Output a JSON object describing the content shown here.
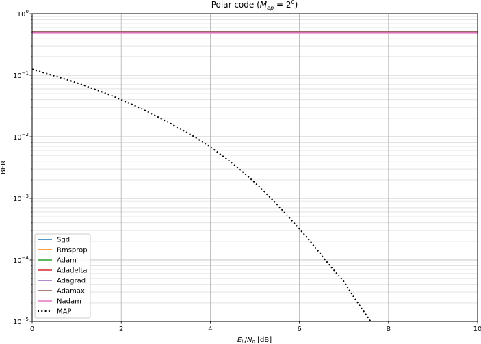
{
  "chart_data": {
    "type": "line",
    "title": "Polar code (M_ep = 2^0)",
    "title_parts": {
      "prefix": "Polar code (",
      "var_main": "M",
      "var_sub": "ep",
      "equals": " = 2",
      "exponent": "0",
      "suffix": ")"
    },
    "xlabel": "E_b/N_0 [dB]",
    "xlabel_parts": {
      "e": "E",
      "e_sub": "b",
      "slash": "/",
      "n": "N",
      "n_sub": "0",
      "unit": " [dB]"
    },
    "ylabel": "BER",
    "xlim": [
      0,
      10
    ],
    "ylim": [
      1e-05,
      1
    ],
    "yscale": "log",
    "grid": true,
    "legend_position": "lower-left",
    "x_ticks": [
      {
        "value": 0,
        "label": "0"
      },
      {
        "value": 2,
        "label": "2"
      },
      {
        "value": 4,
        "label": "4"
      },
      {
        "value": 6,
        "label": "6"
      },
      {
        "value": 8,
        "label": "8"
      },
      {
        "value": 10,
        "label": "10"
      }
    ],
    "y_ticks": [
      {
        "value": 1,
        "base": "10",
        "exp": "0"
      },
      {
        "value": 0.1,
        "base": "10",
        "exp": "−1"
      },
      {
        "value": 0.01,
        "base": "10",
        "exp": "−2"
      },
      {
        "value": 0.001,
        "base": "10",
        "exp": "−3"
      },
      {
        "value": 0.0001,
        "base": "10",
        "exp": "−4"
      },
      {
        "value": 1e-05,
        "base": "10",
        "exp": "−5"
      }
    ],
    "series": [
      {
        "name": "Sgd",
        "color": "#1f77b4",
        "style": "solid",
        "x": [
          0,
          10
        ],
        "y": [
          0.5,
          0.5
        ]
      },
      {
        "name": "Rmsprop",
        "color": "#ff7f0e",
        "style": "solid",
        "x": [
          0,
          10
        ],
        "y": [
          0.5,
          0.5
        ]
      },
      {
        "name": "Adam",
        "color": "#2ca02c",
        "style": "solid",
        "x": [
          0,
          10
        ],
        "y": [
          0.5,
          0.5
        ]
      },
      {
        "name": "Adadelta",
        "color": "#d62728",
        "style": "solid",
        "x": [
          0,
          10
        ],
        "y": [
          0.5,
          0.5
        ]
      },
      {
        "name": "Adagrad",
        "color": "#9467bd",
        "style": "solid",
        "x": [
          0,
          10
        ],
        "y": [
          0.5,
          0.5
        ]
      },
      {
        "name": "Adamax",
        "color": "#8c564b",
        "style": "solid",
        "x": [
          0,
          10
        ],
        "y": [
          0.5,
          0.5
        ]
      },
      {
        "name": "Nadam",
        "color": "#e377c2",
        "style": "solid",
        "x": [
          0,
          10
        ],
        "y": [
          0.49,
          0.49
        ]
      },
      {
        "name": "MAP",
        "color": "#000000",
        "style": "dotted",
        "x": [
          0,
          1,
          2,
          3,
          4,
          5,
          6,
          7,
          7.6
        ],
        "y": [
          0.125,
          0.075,
          0.04,
          0.018,
          0.0068,
          0.0018,
          0.00032,
          4.5e-05,
          1e-05
        ]
      }
    ]
  }
}
